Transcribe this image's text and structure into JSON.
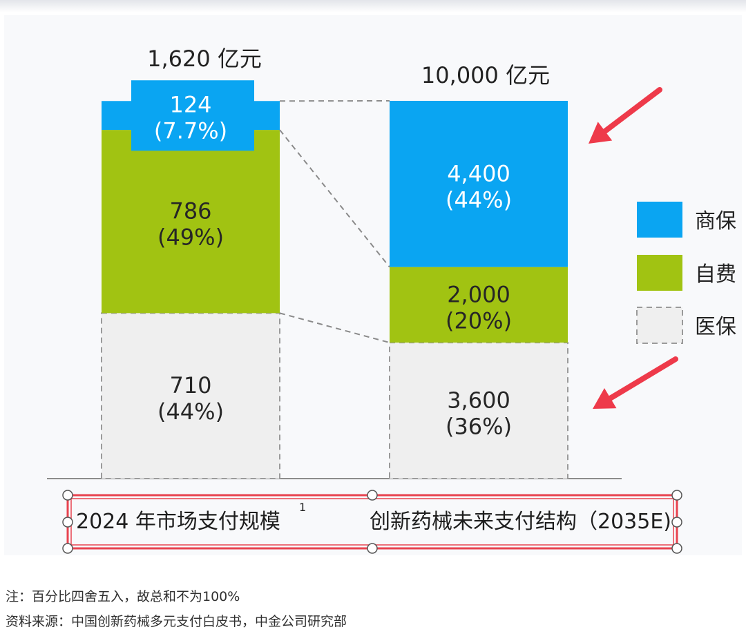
{
  "chart_data": {
    "type": "bar",
    "stacked": true,
    "categories": [
      "2024 年市场支付规模",
      "创新药械未来支付结构（2035E)"
    ],
    "category_footnote": "1",
    "totals": [
      "1,620 亿元",
      "10,000 亿元"
    ],
    "total_values": [
      1620,
      10000
    ],
    "unit": "亿元",
    "series": [
      {
        "name": "医保",
        "values": [
          710,
          3600
        ],
        "labels": [
          "710",
          "3,600"
        ],
        "shares": [
          "(44%)",
          "(36%)"
        ],
        "color": "#efefef",
        "dashed": true
      },
      {
        "name": "自费",
        "values": [
          786,
          2000
        ],
        "labels": [
          "786",
          "2,000"
        ],
        "shares": [
          "(49%)",
          "(20%)"
        ],
        "color": "#a1c312"
      },
      {
        "name": "商保",
        "values": [
          124,
          4400
        ],
        "labels": [
          "124",
          "4,400"
        ],
        "shares": [
          "(7.7%)",
          "(44%)"
        ],
        "color": "#0aa5f2"
      }
    ],
    "legend": {
      "position": "right",
      "order": [
        "商保",
        "自费",
        "医保"
      ]
    },
    "annotations": [
      "red arrow pointing to 商保 segment",
      "red arrow pointing to 医保 segment"
    ],
    "grid": false
  },
  "notes": {
    "note": "注：百分比四舍五入，故总和不为100%",
    "source": "资料来源：中国创新药械多元支付白皮书，中金公司研究部"
  },
  "colors": {
    "accent_red": "#ee3a4a",
    "selection_border": "#e8434f",
    "axis": "#8c8c8c"
  }
}
